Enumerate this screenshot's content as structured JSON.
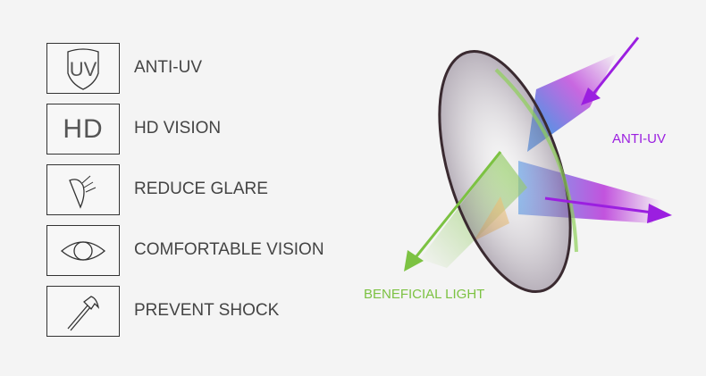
{
  "features": [
    {
      "icon": "uv-shield-icon",
      "label": "ANTI-UV",
      "icon_text": "UV"
    },
    {
      "icon": "hd-icon",
      "label": "HD VISION",
      "icon_text": "HD"
    },
    {
      "icon": "glare-lens-icon",
      "label": "REDUCE GLARE"
    },
    {
      "icon": "eye-icon",
      "label": "COMFORTABLE VISION"
    },
    {
      "icon": "hammer-icon",
      "label": "PREVENT SHOCK"
    }
  ],
  "diagram": {
    "anti_uv_label": "ANTI-UV",
    "beneficial_label": "BENEFICIAL LIGHT",
    "colors": {
      "uv": "#9b1fe0",
      "beneficial": "#7cc242"
    }
  }
}
